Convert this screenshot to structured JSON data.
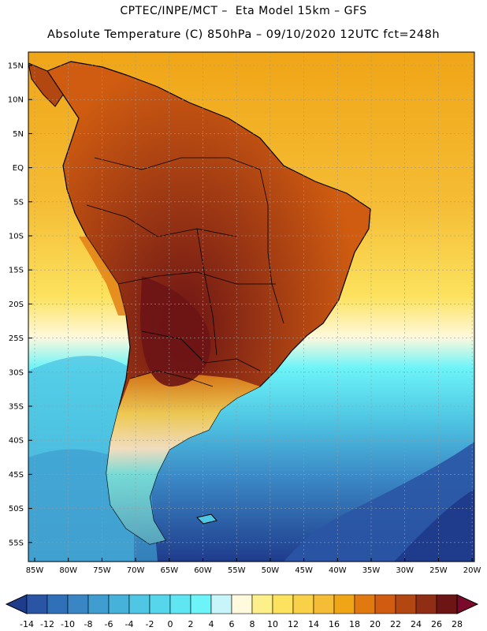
{
  "header": {
    "line1": "CPTEC/INPE/MCT –  Eta Model 15km – GFS",
    "line2": "Absolute Temperature (C) 850hPa – 09/10/2020 12UTC fct=248h"
  },
  "axes": {
    "lat_labels": [
      "15N",
      "10N",
      "5N",
      "EQ",
      "5S",
      "10S",
      "15S",
      "20S",
      "25S",
      "30S",
      "35S",
      "40S",
      "45S",
      "50S",
      "55S"
    ],
    "lon_labels": [
      "85W",
      "80W",
      "75W",
      "70W",
      "65W",
      "60W",
      "55W",
      "50W",
      "45W",
      "40W",
      "35W",
      "30W",
      "25W",
      "20W"
    ]
  },
  "colorbar": {
    "ticks": [
      "-14",
      "-12",
      "-10",
      "-8",
      "-6",
      "-4",
      "-2",
      "0",
      "2",
      "4",
      "6",
      "8",
      "10",
      "12",
      "14",
      "16",
      "18",
      "20",
      "22",
      "24",
      "26",
      "28"
    ],
    "colors": [
      "#1f3c8c",
      "#2a55a5",
      "#3070b8",
      "#3a86c4",
      "#3f9dcf",
      "#46b2da",
      "#4fc6e3",
      "#56d6ea",
      "#5fe6f2",
      "#6cf4f8",
      "#c7f5fa",
      "#fff9dd",
      "#fdf08a",
      "#fce25e",
      "#f9d149",
      "#f5bd35",
      "#f0a516",
      "#e07a10",
      "#cf5c10",
      "#b24712",
      "#8f2e14",
      "#6d1415",
      "#7a0a2a"
    ]
  },
  "map_colors": {
    "ocean_south": "#1f3c8c",
    "ocean_mid": "#56d6ea",
    "ocean_north": "#f5bd35",
    "land_hot": "#8f2e14",
    "land_hottest": "#6d1415",
    "land_warm": "#cf5c10",
    "outline": "#000000",
    "grid": "#9a9a9a"
  }
}
